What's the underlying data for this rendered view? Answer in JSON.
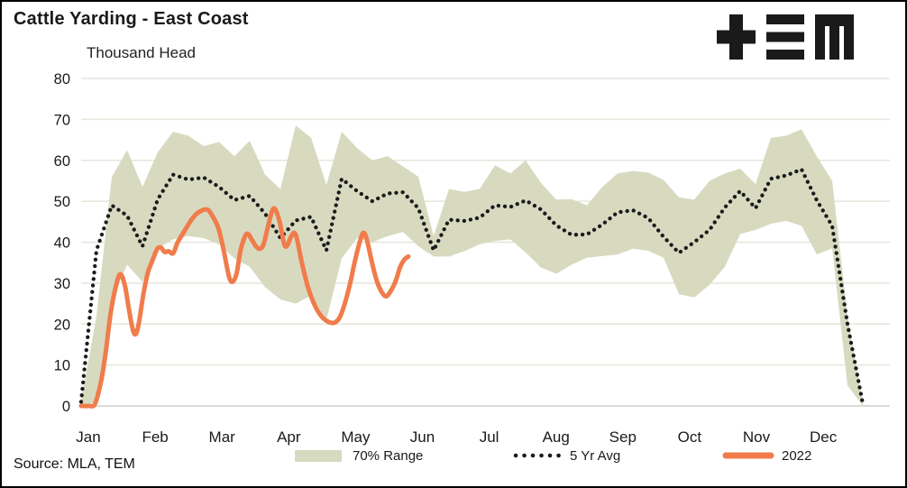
{
  "header": {
    "title": "Cattle Yarding - East Coast",
    "subtitle": "Thousand Head"
  },
  "source": "Source: MLA, TEM",
  "logo": {
    "name": "tem-logo",
    "color": "#1a1a1a"
  },
  "legend": {
    "items": [
      {
        "label": "70% Range",
        "type": "band"
      },
      {
        "label": "5 Yr Avg",
        "type": "dotted"
      },
      {
        "label": "2022",
        "type": "line"
      }
    ]
  },
  "colors": {
    "band": "#d8dac0",
    "avg": "#1b1b1b",
    "line2022": "#f07c4b",
    "grid": "#e6e6dd",
    "zero_line": "#cfcfc7",
    "text": "#1a1a1a"
  },
  "chart_data": {
    "type": "line",
    "title": "Cattle Yarding - East Coast",
    "ylabel": "Thousand Head",
    "x_unit": "week",
    "ylim": [
      0,
      80
    ],
    "y_ticks": [
      0,
      10,
      20,
      30,
      40,
      50,
      60,
      70,
      80
    ],
    "months": [
      "Jan",
      "Feb",
      "Mar",
      "Apr",
      "May",
      "Jun",
      "Jul",
      "Aug",
      "Sep",
      "Oct",
      "Nov",
      "Dec"
    ],
    "grid": true,
    "legend_position": "bottom",
    "series": [
      {
        "name": "70% Range",
        "type": "band",
        "upper": [
          1,
          22,
          56,
          62.5,
          53.5,
          62,
          67,
          66,
          63.5,
          64.5,
          61,
          64.8,
          56.5,
          53,
          68.5,
          65.5,
          54,
          67,
          63,
          60,
          61,
          58.5,
          56,
          41.5,
          53,
          52.3,
          53,
          58.8,
          56.8,
          60,
          54.5,
          50.4,
          50.5,
          49,
          53.5,
          56.8,
          57.4,
          57,
          55.2,
          51,
          50.4,
          55,
          56.8,
          58,
          54.2,
          65.5,
          66,
          67.6,
          61,
          55,
          22,
          1
        ],
        "lower": [
          0,
          1,
          26,
          34.5,
          30.3,
          38.5,
          40.7,
          41.5,
          41,
          39.5,
          36,
          34,
          29,
          26,
          25,
          27,
          21,
          36,
          41,
          40,
          41.5,
          42.5,
          39,
          36.5,
          36.5,
          37.8,
          39.5,
          40.3,
          40.7,
          37.5,
          33.8,
          32.3,
          34.5,
          36.2,
          36.6,
          37,
          38.4,
          37.9,
          36.2,
          27.3,
          26.5,
          29.6,
          34,
          42,
          43,
          44.5,
          45.2,
          44,
          37,
          38.5,
          5,
          0
        ]
      },
      {
        "name": "5 Yr Avg",
        "type": "dotted",
        "values": [
          1,
          38,
          49,
          46.5,
          39,
          50.5,
          56.5,
          55.3,
          55.8,
          53.5,
          50.3,
          51.3,
          47,
          41,
          45.3,
          46.2,
          38,
          55.5,
          52.5,
          50,
          51.9,
          52.2,
          48.3,
          38,
          45.5,
          45.2,
          46,
          49,
          48.6,
          50.2,
          48,
          44.1,
          41.8,
          41.9,
          44.3,
          47.3,
          47.8,
          45.9,
          41.3,
          37.4,
          40,
          43,
          48.5,
          52.5,
          48.3,
          55.5,
          56.3,
          57.8,
          50.2,
          44,
          20,
          0.5
        ]
      },
      {
        "name": "2022",
        "type": "line",
        "points": [
          [
            0,
            0
          ],
          [
            0.5,
            0
          ],
          [
            0.9,
            0.5
          ],
          [
            1.3,
            6
          ],
          [
            1.6,
            13
          ],
          [
            1.9,
            22
          ],
          [
            2.25,
            29
          ],
          [
            2.55,
            32.2
          ],
          [
            2.85,
            29.5
          ],
          [
            3.1,
            24
          ],
          [
            3.35,
            19
          ],
          [
            3.55,
            17.5
          ],
          [
            3.75,
            20
          ],
          [
            4.05,
            27
          ],
          [
            4.35,
            32.5
          ],
          [
            4.65,
            35.5
          ],
          [
            4.95,
            38.3
          ],
          [
            5.2,
            38.7
          ],
          [
            5.45,
            37.6
          ],
          [
            5.7,
            37.8
          ],
          [
            6,
            37.3
          ],
          [
            6.3,
            40
          ],
          [
            6.7,
            42.5
          ],
          [
            7.2,
            45.5
          ],
          [
            7.65,
            47.3
          ],
          [
            8.2,
            48
          ],
          [
            8.5,
            46.8
          ],
          [
            8.95,
            43.5
          ],
          [
            9.3,
            38
          ],
          [
            9.65,
            31.5
          ],
          [
            9.9,
            30.4
          ],
          [
            10.15,
            32.5
          ],
          [
            10.4,
            38
          ],
          [
            10.7,
            41.5
          ],
          [
            10.9,
            42
          ],
          [
            11.15,
            40.5
          ],
          [
            11.4,
            39
          ],
          [
            11.65,
            38.4
          ],
          [
            11.9,
            39.5
          ],
          [
            12.2,
            44
          ],
          [
            12.45,
            47.5
          ],
          [
            12.65,
            48.1
          ],
          [
            12.95,
            45
          ],
          [
            13.25,
            39.5
          ],
          [
            13.45,
            39.2
          ],
          [
            13.65,
            41
          ],
          [
            13.9,
            42.3
          ],
          [
            14.1,
            40.5
          ],
          [
            14.4,
            35
          ],
          [
            14.8,
            29
          ],
          [
            15.25,
            24.5
          ],
          [
            15.7,
            21.8
          ],
          [
            16.1,
            20.6
          ],
          [
            16.5,
            20.3
          ],
          [
            16.85,
            21.5
          ],
          [
            17.2,
            25
          ],
          [
            17.55,
            30
          ],
          [
            17.9,
            36
          ],
          [
            18.25,
            41
          ],
          [
            18.45,
            42.3
          ],
          [
            18.65,
            40.5
          ],
          [
            18.95,
            35.5
          ],
          [
            19.25,
            31
          ],
          [
            19.55,
            28.2
          ],
          [
            19.85,
            26.8
          ],
          [
            20.1,
            27.5
          ],
          [
            20.5,
            30.3
          ],
          [
            20.8,
            33.8
          ],
          [
            21.1,
            35.8
          ],
          [
            21.35,
            36.5
          ]
        ]
      }
    ]
  }
}
